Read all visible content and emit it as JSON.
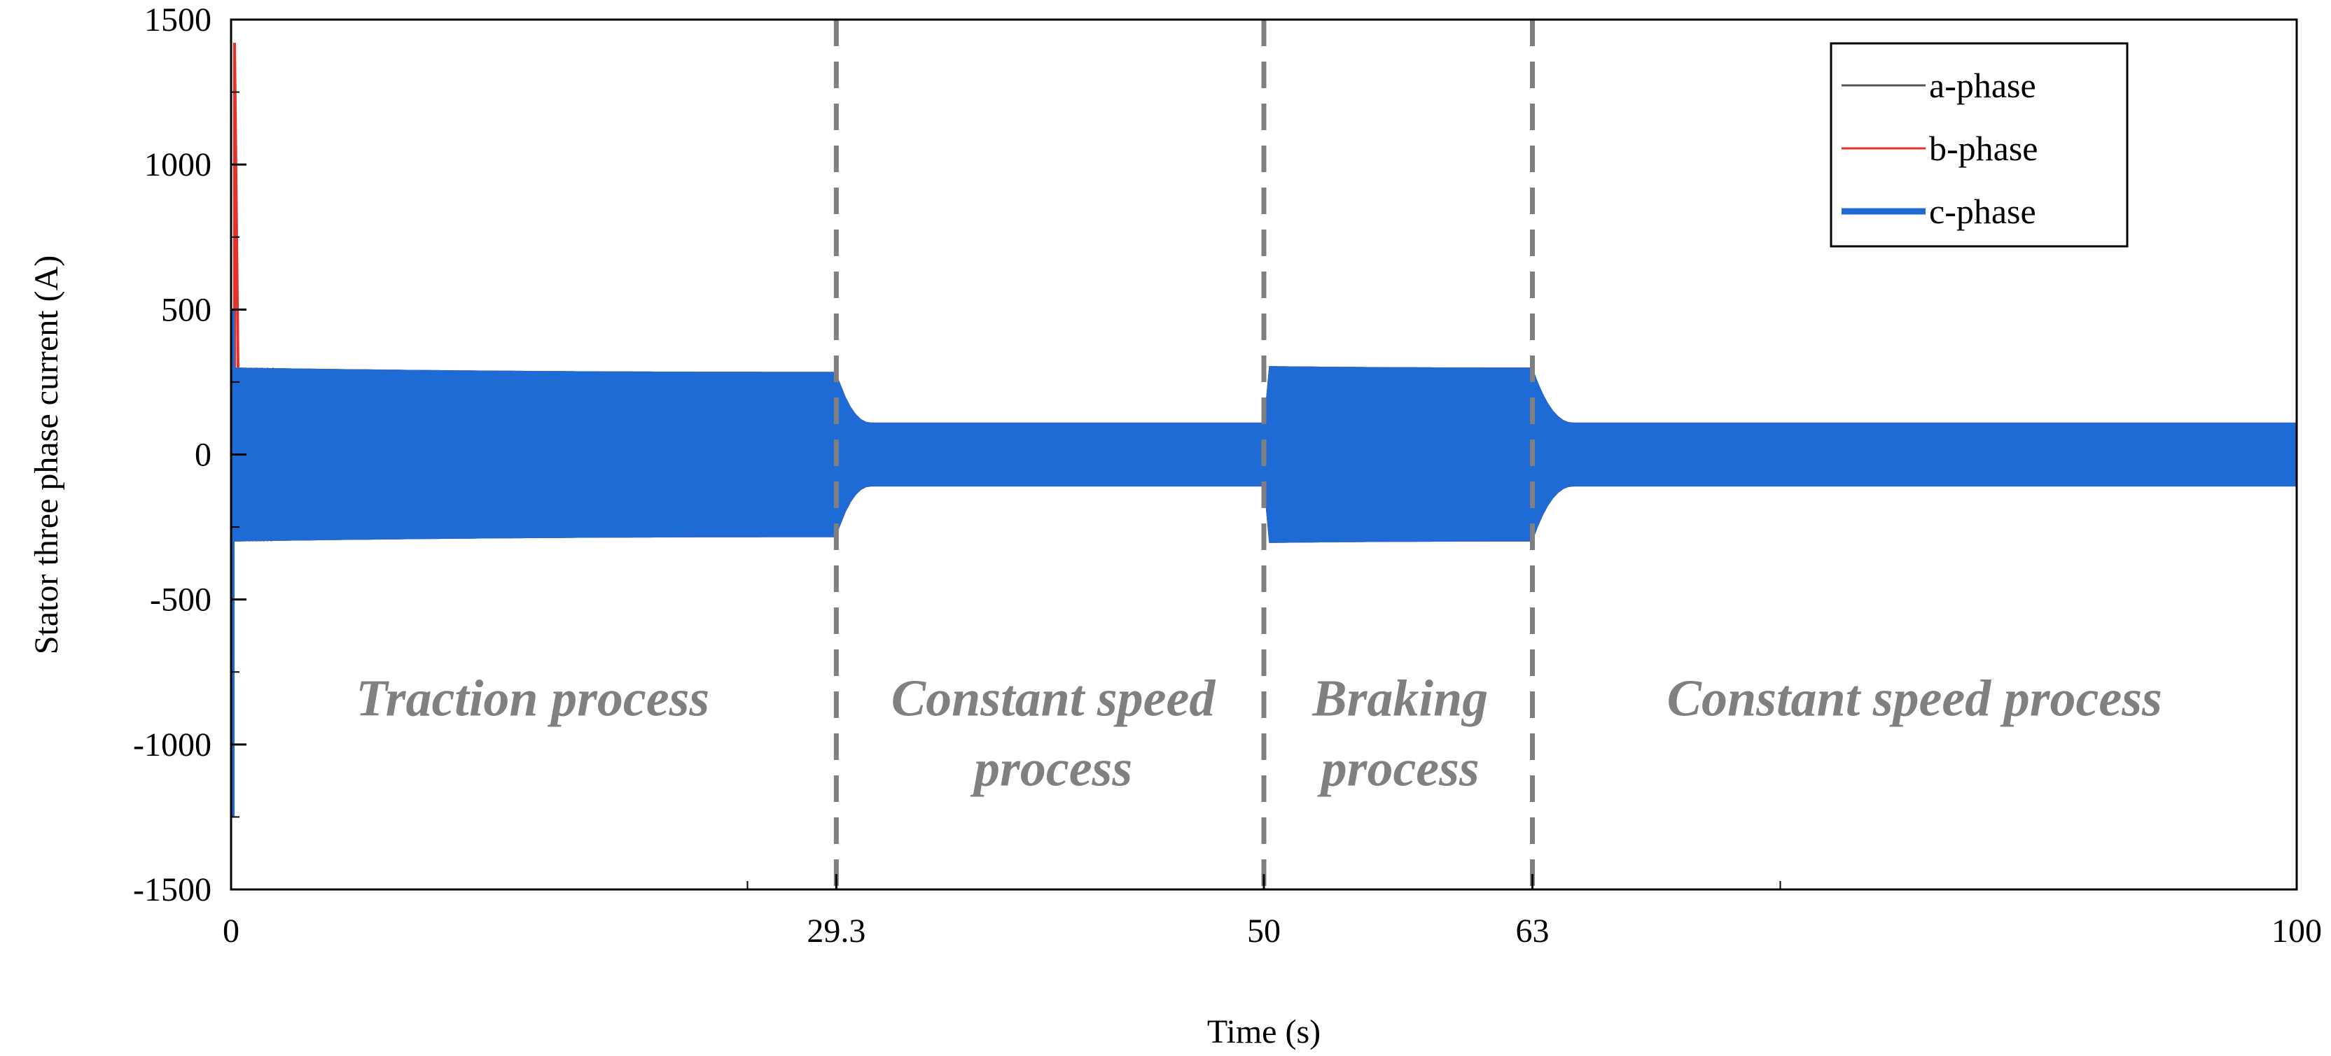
{
  "chart_data": {
    "type": "line",
    "xlabel": "Time (s)",
    "ylabel": "Stator three phase current (A)",
    "xlim": [
      0,
      100
    ],
    "ylim": [
      -1500,
      1500
    ],
    "x_ticks": [
      0,
      29.3,
      50,
      63,
      100
    ],
    "y_ticks": [
      -1500,
      -1000,
      -500,
      0,
      500,
      1000,
      1500
    ],
    "grid": false,
    "legend_position": "top-right",
    "legend": [
      {
        "name": "a-phase",
        "color": "#555555"
      },
      {
        "name": "b-phase",
        "color": "#e8302a"
      },
      {
        "name": "c-phase",
        "color": "#1e6bd6"
      }
    ],
    "series": [
      {
        "name": "a-phase",
        "color": "#555555",
        "envelope": [
          [
            0,
            300
          ],
          [
            29.3,
            285
          ],
          [
            31,
            110
          ],
          [
            50,
            110
          ],
          [
            50.1,
            305
          ],
          [
            63,
            300
          ],
          [
            65,
            110
          ],
          [
            100,
            110
          ]
        ]
      },
      {
        "name": "b-phase",
        "color": "#e8302a",
        "envelope": [
          [
            0,
            300
          ],
          [
            29.3,
            285
          ],
          [
            31,
            110
          ],
          [
            50,
            110
          ],
          [
            50.1,
            305
          ],
          [
            63,
            300
          ],
          [
            65,
            110
          ],
          [
            100,
            110
          ]
        ],
        "startup_peak": 1420
      },
      {
        "name": "c-phase",
        "color": "#1e6bd6",
        "envelope": [
          [
            0,
            300
          ],
          [
            29.3,
            285
          ],
          [
            31,
            110
          ],
          [
            50,
            110
          ],
          [
            50.1,
            305
          ],
          [
            63,
            300
          ],
          [
            65,
            110
          ],
          [
            100,
            110
          ]
        ],
        "startup_min": -1250
      }
    ],
    "dividers": [
      29.3,
      50,
      63
    ],
    "annotations": [
      {
        "lines": [
          "Traction process"
        ],
        "x": 14.6,
        "y": -900
      },
      {
        "lines": [
          "Constant speed",
          "process"
        ],
        "x": 39.8,
        "y": -900
      },
      {
        "lines": [
          "Braking",
          "process"
        ],
        "x": 56.6,
        "y": -900
      },
      {
        "lines": [
          "Constant speed process"
        ],
        "x": 81.5,
        "y": -900
      }
    ]
  }
}
